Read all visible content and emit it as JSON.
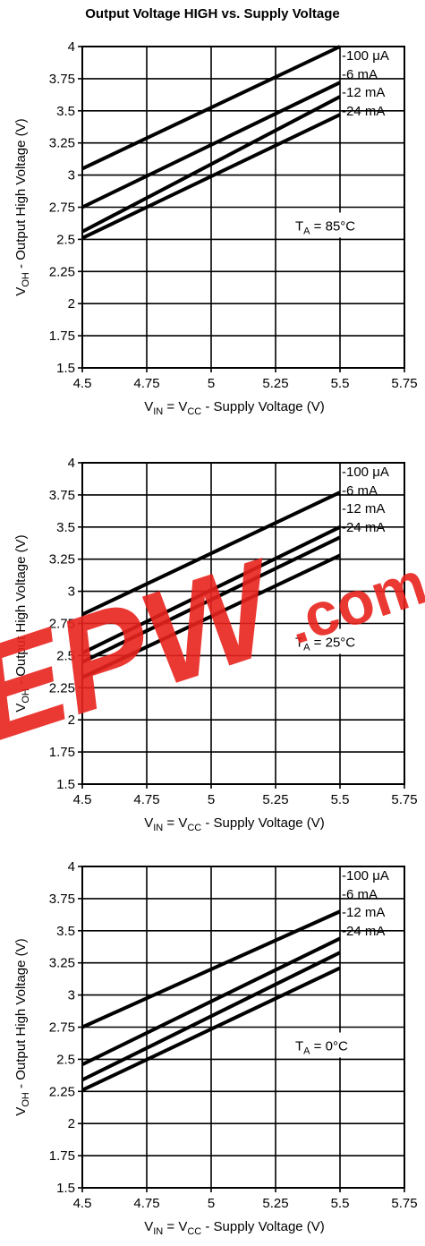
{
  "title": "Output Voltage HIGH vs. Supply Voltage",
  "colors": {
    "line": "#000000",
    "grid": "#000000",
    "watermark_red": "#e8231e"
  },
  "watermark": {
    "text": "EPW",
    "suffix": ".com"
  },
  "chart_data": [
    {
      "type": "line",
      "title": "",
      "xlabel": "V_IN = V_CC - Supply Voltage (V)",
      "ylabel": "V_OH - Output High Voltage (V)",
      "xlim": [
        4.5,
        5.75
      ],
      "ylim": [
        1.5,
        4
      ],
      "x_ticks": [
        "4.5",
        "4.75",
        "5",
        "5.25",
        "5.5",
        "5.75"
      ],
      "y_ticks": [
        "1.5",
        "1.75",
        "2",
        "2.25",
        "2.5",
        "2.75",
        "3",
        "3.25",
        "3.5",
        "3.75",
        "4"
      ],
      "grid": true,
      "annotation": {
        "prefix": "T",
        "sub": "A",
        "rest": " = 85°C"
      },
      "series": [
        {
          "name": "-100 μA",
          "x": [
            4.5,
            5.5
          ],
          "y": [
            3.05,
            4.0
          ]
        },
        {
          "name": "-6 mA",
          "x": [
            4.5,
            5.5
          ],
          "y": [
            2.75,
            3.72
          ]
        },
        {
          "name": "-12 mA",
          "x": [
            4.5,
            5.5
          ],
          "y": [
            2.56,
            3.61
          ]
        },
        {
          "name": "-24 mA",
          "x": [
            4.5,
            5.5
          ],
          "y": [
            2.51,
            3.47
          ]
        }
      ]
    },
    {
      "type": "line",
      "title": "",
      "xlabel": "V_IN = V_CC - Supply Voltage (V)",
      "ylabel": "V_OH - Output High Voltage (V)",
      "xlim": [
        4.5,
        5.75
      ],
      "ylim": [
        1.5,
        4
      ],
      "x_ticks": [
        "4.5",
        "4.75",
        "5",
        "5.25",
        "5.5",
        "5.75"
      ],
      "y_ticks": [
        "1.5",
        "1.75",
        "2",
        "2.25",
        "2.5",
        "2.75",
        "3",
        "3.25",
        "3.5",
        "3.75",
        "4"
      ],
      "grid": true,
      "annotation": {
        "prefix": "T",
        "sub": "A",
        "rest": " = 25°C"
      },
      "series": [
        {
          "name": "-100 μA",
          "x": [
            4.5,
            5.5
          ],
          "y": [
            2.82,
            3.77
          ]
        },
        {
          "name": "-6 mA",
          "x": [
            4.5,
            5.5
          ],
          "y": [
            2.52,
            3.5
          ]
        },
        {
          "name": "-12 mA",
          "x": [
            4.5,
            5.5
          ],
          "y": [
            2.45,
            3.42
          ]
        },
        {
          "name": "-24 mA",
          "x": [
            4.5,
            5.5
          ],
          "y": [
            2.33,
            3.28
          ]
        }
      ]
    },
    {
      "type": "line",
      "title": "",
      "xlabel": "V_IN = V_CC - Supply Voltage (V)",
      "ylabel": "V_OH - Output High Voltage (V)",
      "xlim": [
        4.5,
        5.75
      ],
      "ylim": [
        1.5,
        4
      ],
      "x_ticks": [
        "4.5",
        "4.75",
        "5",
        "5.25",
        "5.5",
        "5.75"
      ],
      "y_ticks": [
        "1.5",
        "1.75",
        "2",
        "2.25",
        "2.5",
        "2.75",
        "3",
        "3.25",
        "3.5",
        "3.75",
        "4"
      ],
      "grid": true,
      "annotation": {
        "prefix": "T",
        "sub": "A",
        "rest": " = 0°C"
      },
      "series": [
        {
          "name": "-100 μA",
          "x": [
            4.5,
            5.5
          ],
          "y": [
            2.75,
            3.65
          ]
        },
        {
          "name": "-6 mA",
          "x": [
            4.5,
            5.5
          ],
          "y": [
            2.46,
            3.44
          ]
        },
        {
          "name": "-12 mA",
          "x": [
            4.5,
            5.5
          ],
          "y": [
            2.34,
            3.33
          ]
        },
        {
          "name": "-24 mA",
          "x": [
            4.5,
            5.5
          ],
          "y": [
            2.26,
            3.21
          ]
        }
      ]
    }
  ]
}
